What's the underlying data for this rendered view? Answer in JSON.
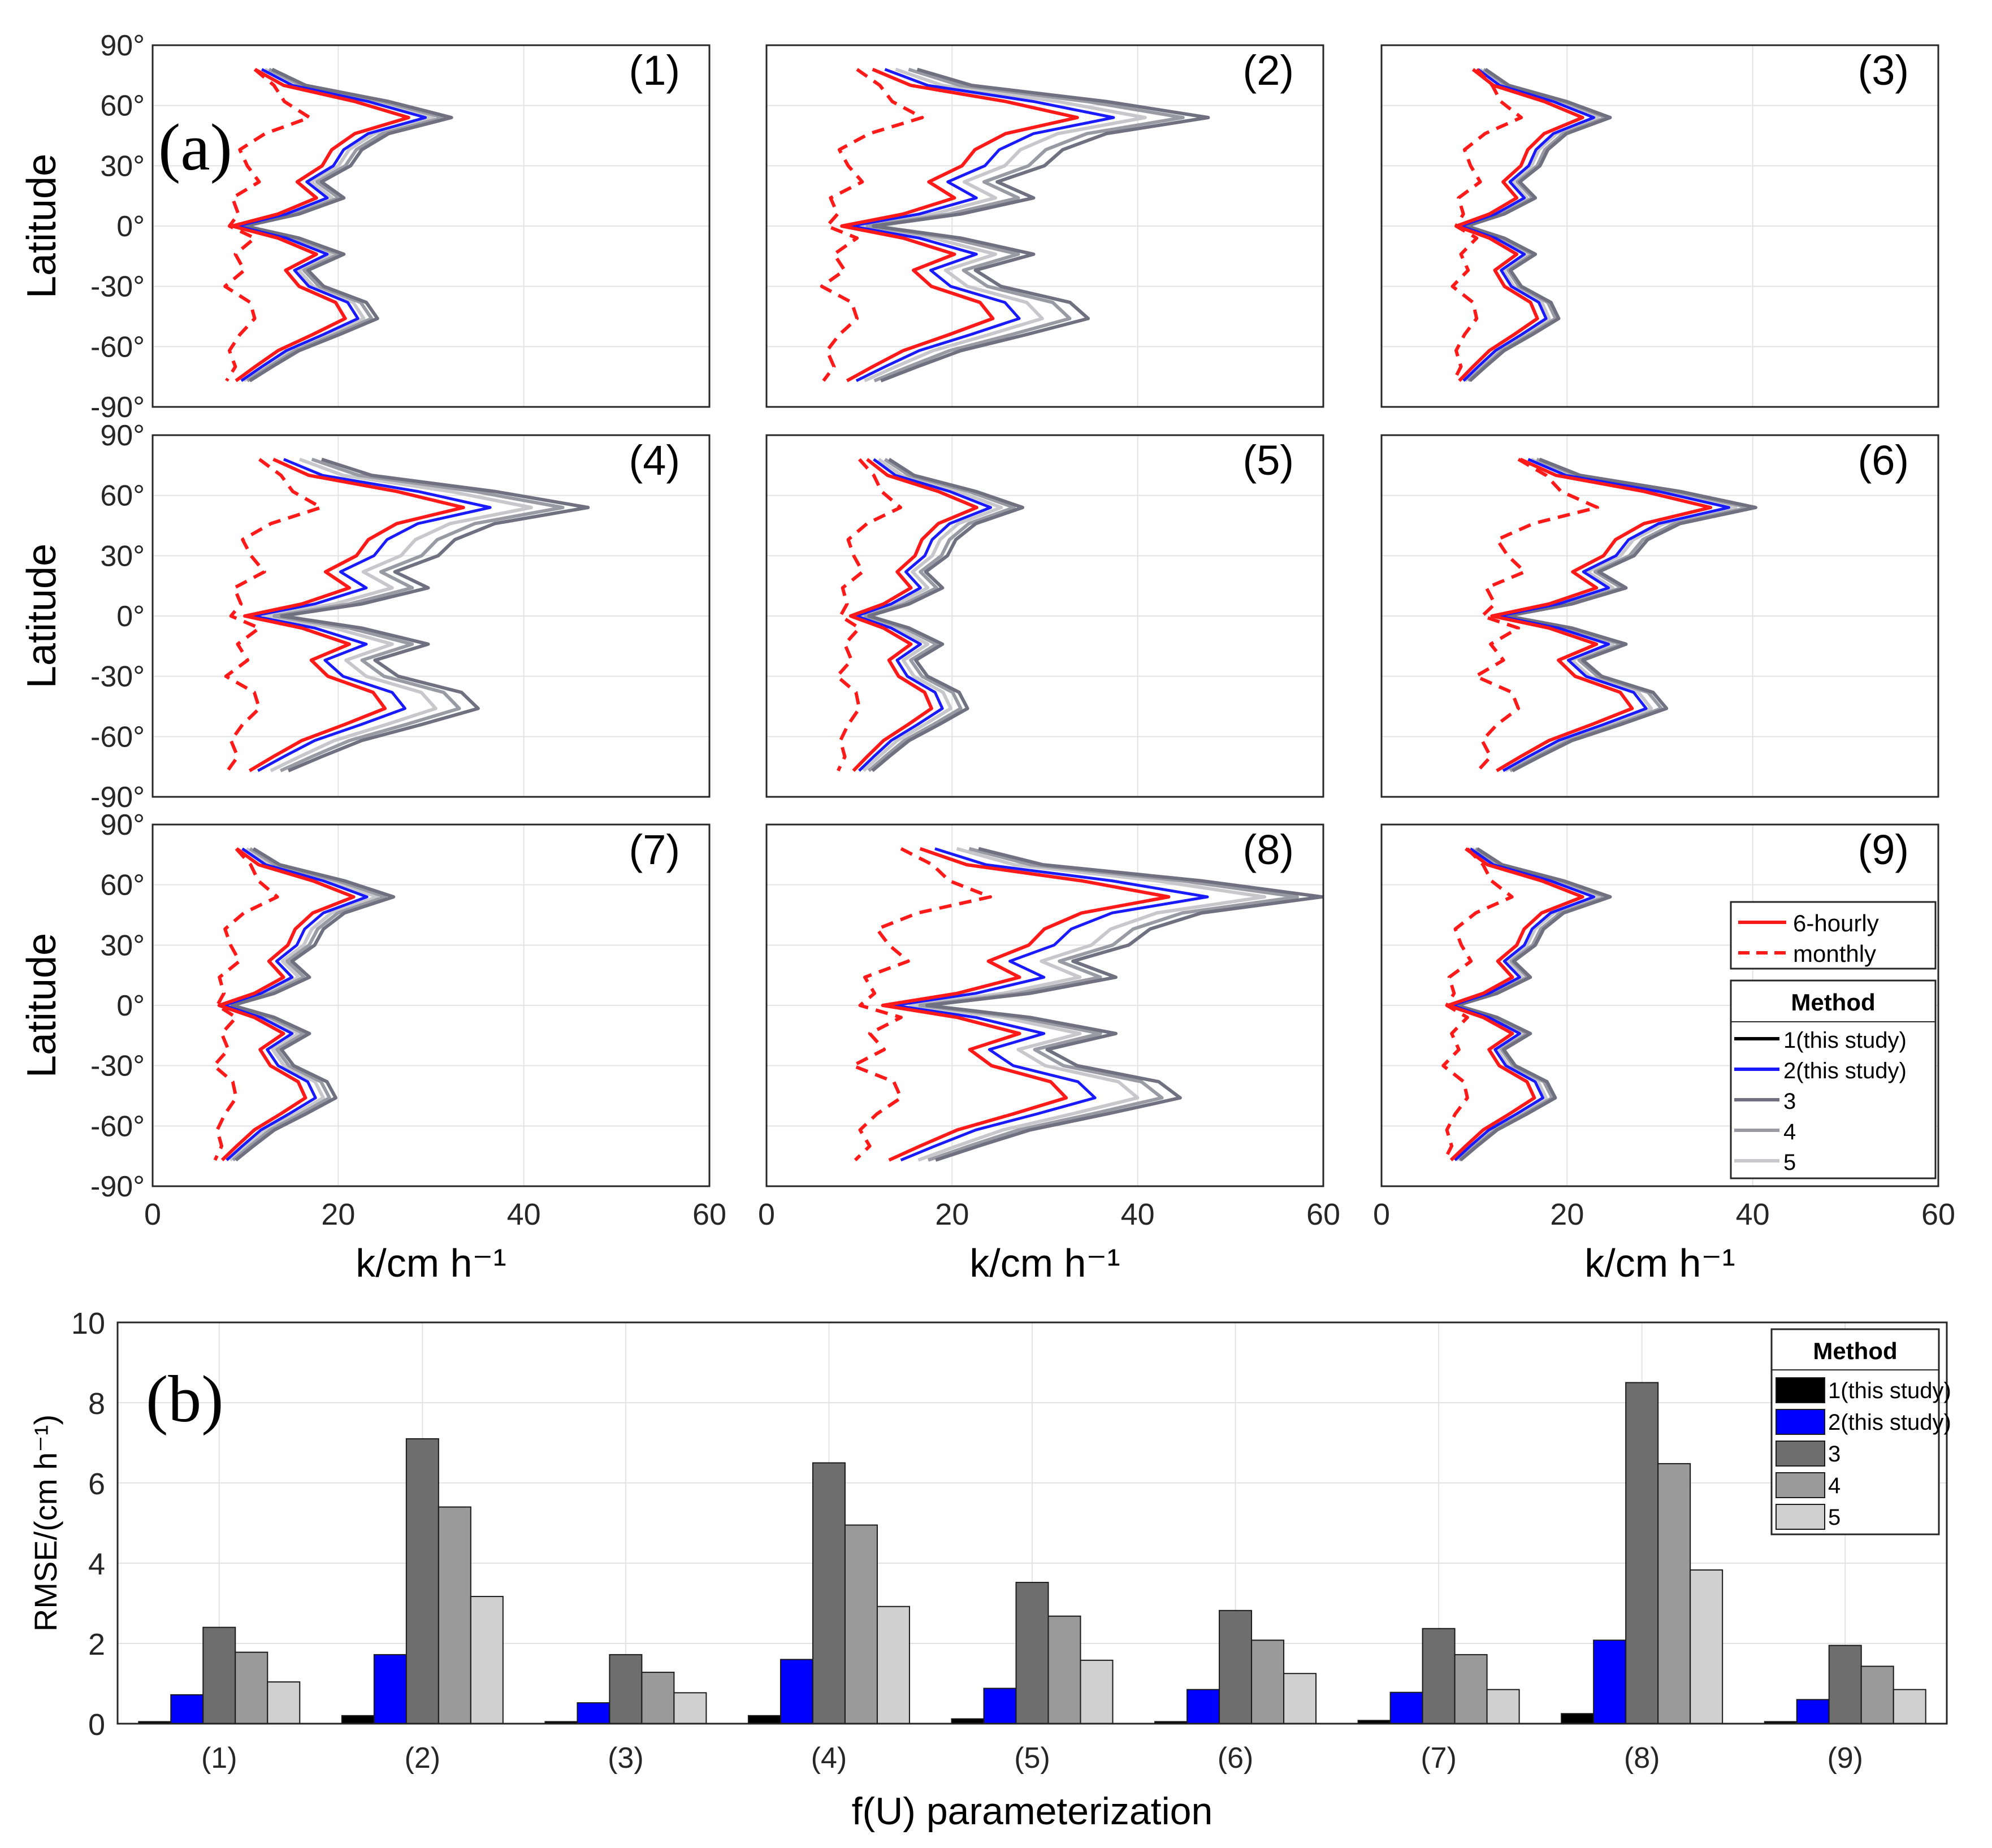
{
  "chart_data": [
    {
      "type": "line",
      "panel_label": "(a)",
      "layout": "3x3 small multiples; x = k/cm h^-1, y = Latitude",
      "xlabel": "k/cm h⁻¹",
      "ylabel": "Latitude",
      "xlim": [
        0,
        60
      ],
      "ylim": [
        -90,
        90
      ],
      "x_ticks": [
        "0",
        "20",
        "40",
        "60"
      ],
      "y_ticks": [
        "90°",
        "60°",
        "30°",
        "0°",
        "-30°",
        "-60°",
        "-90°"
      ],
      "grid": true,
      "legend_line_styles": [
        "6-hourly",
        "monthly"
      ],
      "legend_title": "Method",
      "legend_methods": [
        "1(this study)",
        "2(this study)",
        "3",
        "4",
        "5"
      ],
      "method_colors": [
        "#000000",
        "#1a1aff",
        "#707080",
        "#9a9aa4",
        "#c8c8cc"
      ],
      "monthly_color": "#ff1a1a",
      "latitudes": [
        78,
        70,
        62,
        54,
        46,
        38,
        30,
        22,
        14,
        6,
        0,
        -6,
        -14,
        -22,
        -30,
        -38,
        -46,
        -54,
        -62,
        -70,
        -77
      ],
      "profile_shape": [
        0.2,
        0.35,
        0.72,
        1.0,
        0.72,
        0.6,
        0.55,
        0.42,
        0.52,
        0.32,
        0.08,
        0.32,
        0.52,
        0.36,
        0.43,
        0.62,
        0.67,
        0.5,
        0.32,
        0.2,
        0.1
      ],
      "monthly_shape": [
        0.25,
        0.38,
        0.45,
        0.62,
        0.32,
        0.15,
        0.2,
        0.28,
        0.1,
        0.14,
        0.08,
        0.25,
        0.12,
        0.18,
        0.05,
        0.22,
        0.25,
        0.15,
        0.08,
        0.12,
        0.06
      ],
      "subplots": [
        {
          "label": "(1)",
          "base_min": 7,
          "peak": 28,
          "method_scale": [
            1.0,
            1.05,
            1.15,
            1.12,
            1.08
          ],
          "monthly_min": 7,
          "monthly_peak": 23
        },
        {
          "label": "(2)",
          "base_min": 6,
          "peak": 34,
          "method_scale": [
            1.0,
            1.1,
            1.4,
            1.32,
            1.2
          ],
          "monthly_min": 5,
          "monthly_peak": 24
        },
        {
          "label": "(3)",
          "base_min": 7,
          "peak": 22,
          "method_scale": [
            1.0,
            1.04,
            1.12,
            1.1,
            1.06
          ],
          "monthly_min": 7,
          "monthly_peak": 20
        },
        {
          "label": "(4)",
          "base_min": 8,
          "peak": 34,
          "method_scale": [
            1.0,
            1.07,
            1.38,
            1.3,
            1.2
          ],
          "monthly_min": 7,
          "monthly_peak": 25
        },
        {
          "label": "(5)",
          "base_min": 8,
          "peak": 23,
          "method_scale": [
            1.0,
            1.05,
            1.2,
            1.16,
            1.1
          ],
          "monthly_min": 7,
          "monthly_peak": 19
        },
        {
          "label": "(6)",
          "base_min": 10,
          "peak": 36,
          "method_scale": [
            1.0,
            1.04,
            1.12,
            1.1,
            1.06
          ],
          "monthly_min": 9,
          "monthly_peak": 32
        },
        {
          "label": "(7)",
          "base_min": 6,
          "peak": 22,
          "method_scale": [
            1.0,
            1.05,
            1.18,
            1.14,
            1.1
          ],
          "monthly_min": 6,
          "monthly_peak": 18
        },
        {
          "label": "(8)",
          "base_min": 10,
          "peak": 44,
          "method_scale": [
            1.0,
            1.08,
            1.36,
            1.3,
            1.22
          ],
          "monthly_min": 8,
          "monthly_peak": 34
        },
        {
          "label": "(9)",
          "base_min": 6,
          "peak": 22,
          "method_scale": [
            1.0,
            1.04,
            1.12,
            1.1,
            1.06
          ],
          "monthly_min": 6,
          "monthly_peak": 19
        }
      ]
    },
    {
      "type": "bar",
      "panel_label": "(b)",
      "title": "",
      "xlabel": "f(U) parameterization",
      "ylabel": "RMSE/(cm h⁻¹)",
      "ylim": [
        0,
        10
      ],
      "y_ticks": [
        "0",
        "2",
        "4",
        "6",
        "8",
        "10"
      ],
      "grid": true,
      "legend_title": "Method",
      "categories": [
        "(1)",
        "(2)",
        "(3)",
        "(4)",
        "(5)",
        "(6)",
        "(7)",
        "(8)",
        "(9)"
      ],
      "series": [
        {
          "name": "1(this study)",
          "color": "#000000",
          "values": [
            0.05,
            0.2,
            0.05,
            0.2,
            0.12,
            0.05,
            0.08,
            0.25,
            0.05
          ]
        },
        {
          "name": "2(this study)",
          "color": "#0000ff",
          "values": [
            0.72,
            1.72,
            0.52,
            1.6,
            0.88,
            0.85,
            0.78,
            2.08,
            0.6
          ]
        },
        {
          "name": "3",
          "color": "#6e6e6e",
          "values": [
            2.4,
            7.1,
            1.72,
            6.5,
            3.52,
            2.82,
            2.37,
            8.5,
            1.95
          ]
        },
        {
          "name": "4",
          "color": "#9a9a9a",
          "values": [
            1.78,
            5.4,
            1.28,
            4.95,
            2.68,
            2.08,
            1.72,
            6.48,
            1.43
          ]
        },
        {
          "name": "5",
          "color": "#d0d0d0",
          "values": [
            1.04,
            3.17,
            0.77,
            2.92,
            1.58,
            1.25,
            0.85,
            3.83,
            0.85
          ]
        }
      ]
    }
  ]
}
